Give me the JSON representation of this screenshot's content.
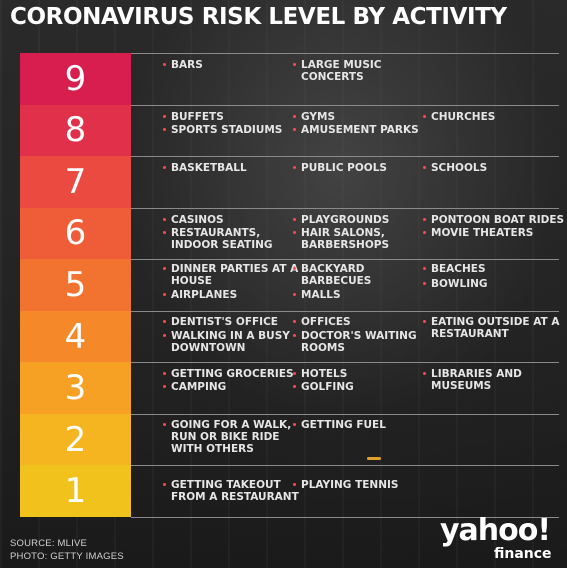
{
  "title": "CORONAVIRUS RISK LEVEL BY ACTIVITY",
  "levels": [
    {
      "level": "9",
      "color": "#d81e4e",
      "items": [
        [
          "BARS"
        ],
        [
          "LARGE MUSIC",
          "CONCERTS"
        ]
      ],
      "cols": [
        0,
        1
      ]
    },
    {
      "level": "8",
      "color": "#e0304a",
      "items": [
        [
          "BUFFETS"
        ],
        [
          "GYMS"
        ],
        [
          "CHURCHES"
        ],
        [
          "SPORTS STADIUMS"
        ],
        [
          "AMUSEMENT PARKS"
        ]
      ],
      "cols": [
        0,
        1,
        2,
        0,
        1
      ]
    },
    {
      "level": "7",
      "color": "#ea4a3f",
      "items": [
        [
          "BASKETBALL"
        ],
        [
          "PUBLIC POOLS"
        ],
        [
          "SCHOOLS"
        ]
      ],
      "cols": [
        0,
        1,
        2
      ]
    },
    {
      "level": "6",
      "color": "#ef5d38",
      "items": [
        [
          "CASINOS"
        ],
        [
          "PLAYGROUNDS"
        ],
        [
          "PONTOON BOAT RIDES"
        ],
        [
          "RESTAURANTS,",
          "INDOOR SEATING"
        ],
        [
          "HAIR SALONS,",
          "BARBERSHOPS"
        ],
        [
          "MOVIE THEATERS"
        ]
      ],
      "cols": [
        0,
        1,
        2,
        0,
        1,
        2
      ]
    },
    {
      "level": "5",
      "color": "#f27330",
      "items": [
        [
          "DINNER PARTIES AT A",
          "HOUSE"
        ],
        [
          "BACKYARD",
          "BARBECUES"
        ],
        [
          "BEACHES"
        ],
        [
          "BOWLING"
        ],
        [
          "AIRPLANES"
        ],
        [
          "MALLS"
        ]
      ],
      "cols": [
        0,
        1,
        2,
        2,
        0,
        1
      ]
    },
    {
      "level": "4",
      "color": "#f5892a",
      "items": [
        [
          "DENTIST'S OFFICE"
        ],
        [
          "OFFICES"
        ],
        [
          "EATING OUTSIDE AT A",
          "RESTAURANT"
        ],
        [
          "WALKING IN A BUSY",
          "DOWNTOWN"
        ],
        [
          "DOCTOR'S WAITING",
          "ROOMS"
        ]
      ],
      "cols": [
        0,
        1,
        2,
        0,
        1
      ]
    },
    {
      "level": "3",
      "color": "#f6a124",
      "items": [
        [
          "GETTING GROCERIES"
        ],
        [
          "HOTELS"
        ],
        [
          "LIBRARIES AND",
          "MUSEUMS"
        ],
        [
          "CAMPING"
        ],
        [
          "GOLFING"
        ]
      ],
      "cols": [
        0,
        1,
        2,
        0,
        1
      ]
    },
    {
      "level": "2",
      "color": "#f5b520",
      "items": [
        [
          "GOING FOR A WALK,",
          "RUN OR BIKE RIDE",
          "WITH OTHERS"
        ],
        [
          "GETTING FUEL"
        ]
      ],
      "cols": [
        0,
        1
      ]
    },
    {
      "level": "1",
      "color": "#f2c21c",
      "items": [
        [
          "GETTING TAKEOUT",
          "FROM A RESTAURANT"
        ],
        [
          "PLAYING TENNIS"
        ]
      ],
      "cols": [
        0,
        1
      ]
    }
  ],
  "footer": {
    "source": "SOURCE:  MLIVE",
    "photo": "PHOTO: GETTY IMAGES"
  },
  "logo": {
    "main": "yahoo!",
    "sub": "finance"
  }
}
